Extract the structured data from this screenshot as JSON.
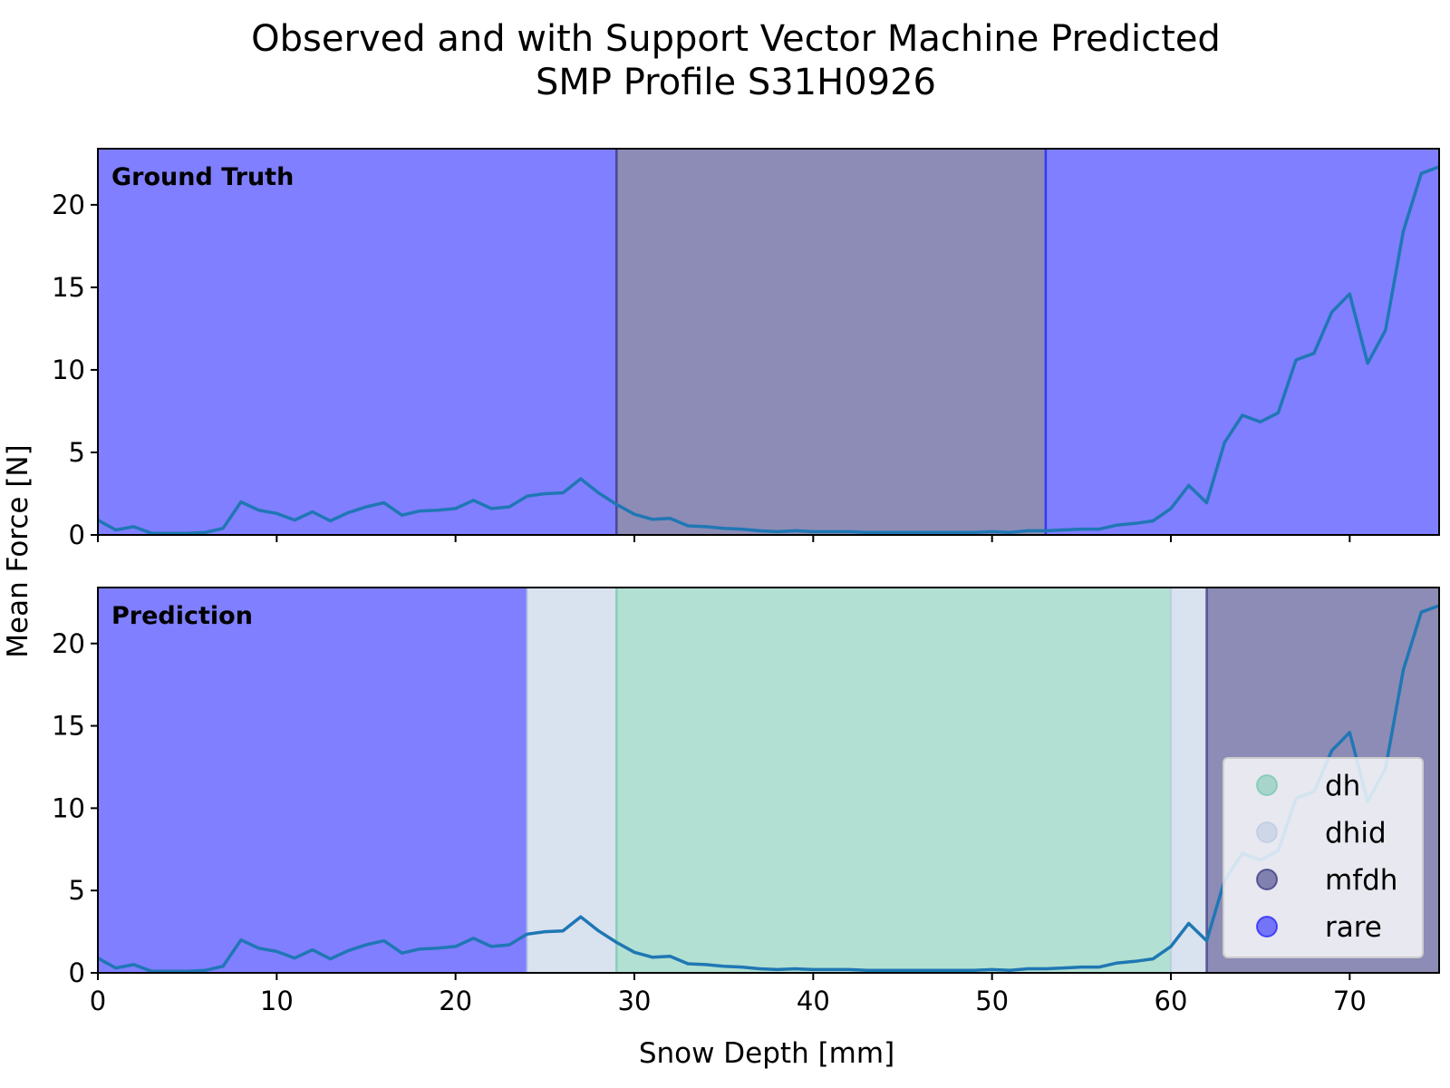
{
  "chart_data": {
    "type": "line",
    "title": [
      "Observed and with Support Vector Machine Predicted",
      "SMP Profile S31H0926"
    ],
    "xlabel": "Snow Depth [mm]",
    "ylabel": "Mean Force [N]",
    "xlim": [
      0,
      75
    ],
    "ylim": [
      0,
      23.4
    ],
    "xticks": [
      0,
      10,
      20,
      30,
      40,
      50,
      60,
      70
    ],
    "yticks": [
      0,
      5,
      10,
      15,
      20
    ],
    "grid": false,
    "legend_position": "lower-right",
    "class_colors": {
      "dh": "#66c2a5",
      "dhid": "#b3c6e0",
      "mfdh": "#1a1a6e",
      "rare": "#0000ff"
    },
    "legend": [
      {
        "label": "dh",
        "color": "#66c2a5"
      },
      {
        "label": "dhid",
        "color": "#b3c6e0"
      },
      {
        "label": "mfdh",
        "color": "#1a1a6e"
      },
      {
        "label": "rare",
        "color": "#0000ff"
      }
    ],
    "series": [
      {
        "x": [
          0,
          1,
          2,
          3,
          4,
          5,
          6,
          7,
          8,
          9,
          10,
          11,
          12,
          13,
          14,
          15,
          16,
          17,
          18,
          19,
          20,
          21,
          22,
          23,
          24,
          25,
          26,
          27,
          28,
          29,
          30,
          31,
          32,
          33,
          34,
          35,
          36,
          37,
          38,
          39,
          40,
          41,
          42,
          43,
          44,
          45,
          46,
          47,
          48,
          49,
          50,
          51,
          52,
          53,
          54,
          55,
          56,
          57,
          58,
          59,
          60,
          61,
          62,
          63,
          64,
          65,
          66,
          67,
          68,
          69,
          70,
          71,
          72,
          73,
          74,
          75
        ],
        "y": [
          0.9,
          0.3,
          0.5,
          0.1,
          0.1,
          0.1,
          0.15,
          0.4,
          2.0,
          1.5,
          1.3,
          0.9,
          1.4,
          0.85,
          1.35,
          1.7,
          1.95,
          1.2,
          1.45,
          1.5,
          1.6,
          2.1,
          1.6,
          1.7,
          2.35,
          2.5,
          2.55,
          3.4,
          2.55,
          1.85,
          1.25,
          0.95,
          1.0,
          0.55,
          0.5,
          0.4,
          0.35,
          0.25,
          0.2,
          0.25,
          0.2,
          0.2,
          0.2,
          0.15,
          0.15,
          0.15,
          0.15,
          0.15,
          0.15,
          0.15,
          0.2,
          0.15,
          0.25,
          0.25,
          0.3,
          0.35,
          0.35,
          0.6,
          0.7,
          0.85,
          1.6,
          3.0,
          1.95,
          5.6,
          7.25,
          6.85,
          7.4,
          10.6,
          11.0,
          13.5,
          14.6,
          10.4,
          12.4,
          18.4,
          21.9,
          22.3
        ]
      }
    ],
    "panels": [
      {
        "label": "Ground Truth",
        "segments": [
          {
            "start": 0,
            "end": 29,
            "class": "rare"
          },
          {
            "start": 29,
            "end": 53,
            "class": "mfdh"
          },
          {
            "start": 53,
            "end": 75,
            "class": "rare"
          }
        ]
      },
      {
        "label": "Prediction",
        "segments": [
          {
            "start": 0,
            "end": 24,
            "class": "rare"
          },
          {
            "start": 24,
            "end": 29,
            "class": "dhid"
          },
          {
            "start": 29,
            "end": 60,
            "class": "dh"
          },
          {
            "start": 60,
            "end": 62,
            "class": "dhid"
          },
          {
            "start": 62,
            "end": 75,
            "class": "mfdh"
          }
        ]
      }
    ]
  }
}
